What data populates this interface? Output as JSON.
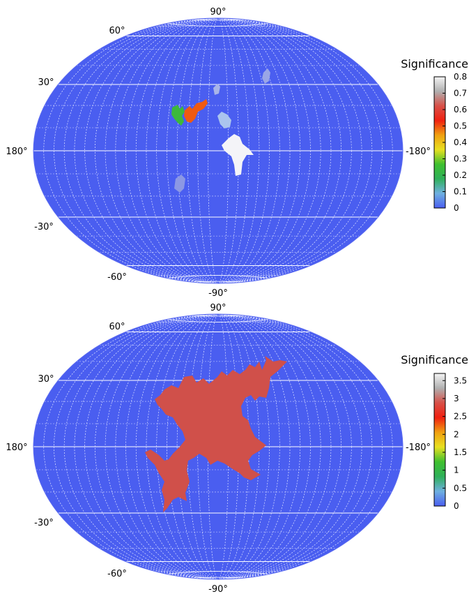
{
  "palette": {
    "map_fill": "#4a5ef0",
    "grid": "#d0d6ff",
    "grid_major": "#ffffff"
  },
  "maps": [
    {
      "colorbar_title": "Significance",
      "colorbar_ticks": [
        "0",
        "0.1",
        "0.2",
        "0.3",
        "0.4",
        "0.5",
        "0.6",
        "0.7",
        "0.8"
      ],
      "colorbar_stops": [
        "#4a5ef0",
        "#6fb0e0",
        "#2fb05a",
        "#3fc02f",
        "#e8e020",
        "#f0a010",
        "#f02010",
        "#d85048",
        "#b0b0b0",
        "#f4f4f4"
      ],
      "lat_labels": {
        "top": "90°",
        "p60": "60°",
        "p30": "30°",
        "left": "180°",
        "right": "-180°",
        "m30": "-30°",
        "m60": "-60°",
        "bottom": "-90°"
      },
      "regions": [
        {
          "name": "green-blob",
          "color": "#3cb83c"
        },
        {
          "name": "orange-blob",
          "color": "#f05a10"
        },
        {
          "name": "pale-blob-upper",
          "color": "#a8b4e8"
        },
        {
          "name": "pale-blob-right",
          "color": "#9aa6e6"
        },
        {
          "name": "light-blue-blob",
          "color": "#aac4ee"
        },
        {
          "name": "white-blob",
          "color": "#f4f4f8"
        },
        {
          "name": "pale-blob-lower",
          "color": "#8c98e4"
        }
      ]
    },
    {
      "colorbar_title": "Significance",
      "colorbar_ticks": [
        "0",
        "0.5",
        "1",
        "1.5",
        "2",
        "2.5",
        "3",
        "3.5"
      ],
      "colorbar_stops": [
        "#4a5ef0",
        "#6fb0e0",
        "#2fb05a",
        "#3fc02f",
        "#e8e020",
        "#f0a010",
        "#f02010",
        "#d85048",
        "#b0b0b0",
        "#f4f4f4"
      ],
      "lat_labels": {
        "top": "90°",
        "p60": "60°",
        "p30": "30°",
        "left": "180°",
        "right": "-180°",
        "m30": "-30°",
        "m60": "-60°",
        "bottom": "-90°"
      },
      "regions": [
        {
          "name": "red-region",
          "color": "#d0504a"
        }
      ]
    }
  ]
}
